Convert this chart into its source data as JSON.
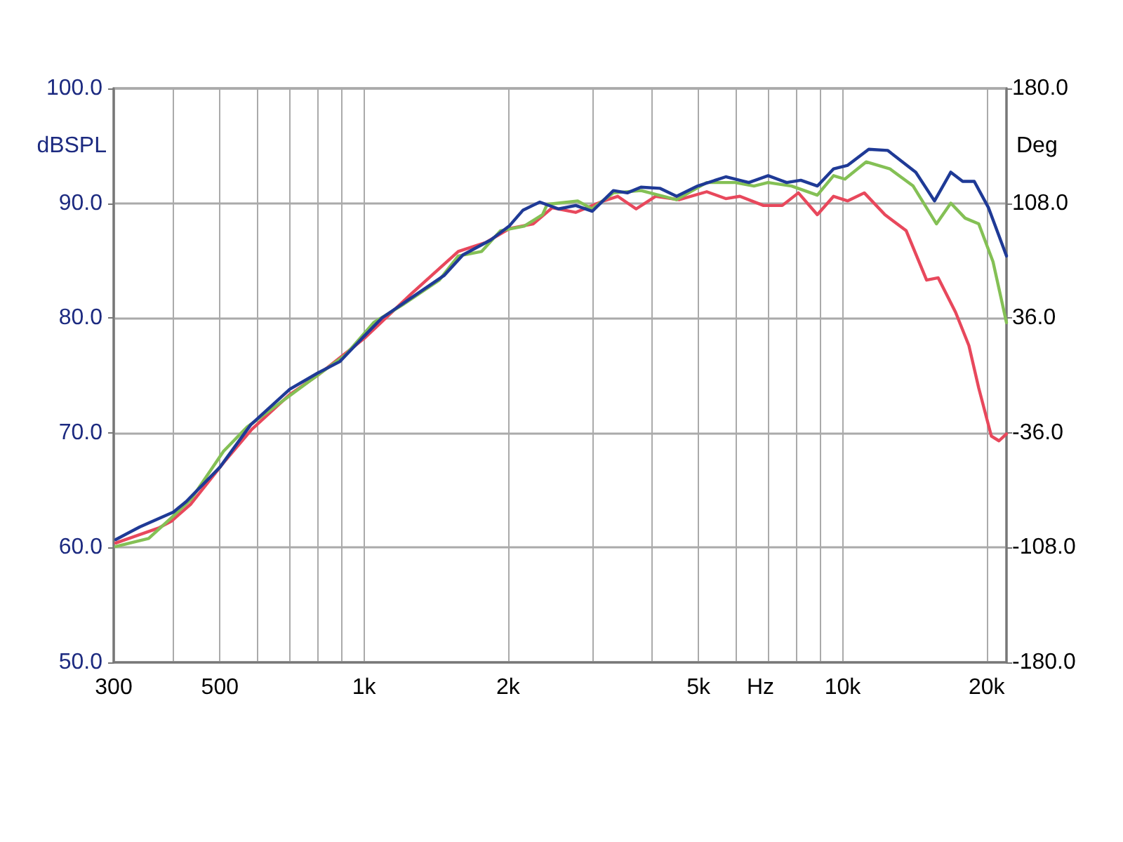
{
  "chart_data": {
    "type": "line",
    "xlabel": "Hz",
    "ylabel": "dBSPL",
    "y2label": "Deg",
    "log": "x",
    "grid": true,
    "marker": "none",
    "line_style": "solid",
    "xlim": [
      300,
      22000
    ],
    "ylim": [
      50,
      100
    ],
    "y2lim": [
      -180,
      180
    ],
    "xticks": [
      300,
      {
        "value": 400,
        "label": null
      },
      500,
      {
        "value": 600,
        "label": null
      },
      {
        "value": 700,
        "label": null
      },
      {
        "value": 800,
        "label": null
      },
      {
        "value": 900,
        "label": null
      },
      {
        "value": 1000,
        "label": "1k"
      },
      {
        "value": 2000,
        "label": "2k"
      },
      {
        "value": 3000,
        "label": null
      },
      {
        "value": 4000,
        "label": null
      },
      {
        "value": 5000,
        "label": "5k"
      },
      {
        "value": 6000,
        "label": null
      },
      {
        "value": 7000,
        "label": null
      },
      {
        "value": 8000,
        "label": null
      },
      {
        "value": 9000,
        "label": null
      },
      {
        "value": 10000,
        "label": "10k"
      },
      {
        "value": 20000,
        "label": "20k"
      }
    ],
    "yticks": [
      {
        "value": 50,
        "label": "50.0"
      },
      {
        "value": 60,
        "label": "60.0"
      },
      {
        "value": 70,
        "label": "70.0"
      },
      {
        "value": 80,
        "label": "80.0"
      },
      {
        "value": 90,
        "label": "90.0"
      },
      {
        "value": 100,
        "label": "100.0"
      }
    ],
    "y2ticks": [
      {
        "value": -180,
        "label": "-180.0"
      },
      {
        "value": -108,
        "label": "-108.0"
      },
      {
        "value": -36,
        "label": "-36.0"
      },
      {
        "value": 36,
        "label": "36.0"
      },
      {
        "value": 108,
        "label": "108.0"
      },
      {
        "value": 180,
        "label": "180.0"
      }
    ],
    "series": [
      {
        "color": "#e8485c",
        "x": [
          303,
          372,
          396,
          435,
          509,
          583,
          698,
          800,
          1000,
          1255,
          1574,
          1802,
          2016,
          2257,
          2473,
          2768,
          3167,
          3389,
          3704,
          4066,
          4552,
          5202,
          5700,
          6100,
          6835,
          7480,
          8085,
          8855,
          9575,
          10250,
          11100,
          12260,
          13580,
          14980,
          15840,
          17220,
          18360,
          19250,
          20460,
          21220,
          22000
        ],
        "values": [
          60.4,
          61.7,
          62.3,
          63.8,
          67.4,
          70.3,
          73.3,
          75.0,
          78.2,
          82.1,
          85.8,
          86.6,
          87.8,
          88.2,
          89.6,
          89.2,
          90.2,
          90.6,
          89.5,
          90.6,
          90.3,
          91.0,
          90.4,
          90.6,
          89.8,
          89.8,
          90.9,
          89.0,
          90.6,
          90.2,
          90.9,
          89.0,
          87.6,
          83.3,
          83.5,
          80.5,
          77.6,
          73.9,
          69.7,
          69.3,
          69.9
        ]
      },
      {
        "color": "#84c055",
        "x": [
          303,
          355,
          396,
          435,
          509,
          570,
          624,
          764,
          916,
          1048,
          1200,
          1437,
          1574,
          1762,
          1928,
          2160,
          2361,
          2414,
          2796,
          2995,
          3318,
          3794,
          4498,
          5202,
          5963,
          6528,
          6985,
          7823,
          8855,
          9575,
          10110,
          11200,
          12550,
          14040,
          15710,
          16830,
          18030,
          19250,
          20620,
          22000
        ],
        "values": [
          60.1,
          60.8,
          62.6,
          64.2,
          68.4,
          70.5,
          71.7,
          74.4,
          76.8,
          79.6,
          81.1,
          83.3,
          85.4,
          85.8,
          87.6,
          88.0,
          89.0,
          89.9,
          90.2,
          89.5,
          90.9,
          91.1,
          90.3,
          91.8,
          91.8,
          91.5,
          91.8,
          91.5,
          90.7,
          92.4,
          92.1,
          93.6,
          93.0,
          91.5,
          88.2,
          90.0,
          88.7,
          88.2,
          84.9,
          79.6
        ]
      },
      {
        "color": "#1f3a96",
        "x": [
          303,
          340,
          400,
          425,
          500,
          580,
          700,
          800,
          890,
          1000,
          1090,
          1250,
          1470,
          1610,
          1840,
          2010,
          2150,
          2330,
          2550,
          2770,
          3000,
          3320,
          3550,
          3790,
          4150,
          4500,
          4980,
          5700,
          6370,
          6990,
          7640,
          8180,
          8860,
          9580,
          10250,
          11340,
          12420,
          14220,
          15560,
          16830,
          17820,
          18840,
          20180,
          22000
        ],
        "values": [
          60.7,
          61.8,
          63.1,
          64.0,
          67.0,
          70.7,
          73.8,
          75.2,
          76.2,
          78.4,
          80.0,
          81.7,
          83.7,
          85.5,
          86.8,
          88.0,
          89.4,
          90.1,
          89.5,
          89.8,
          89.3,
          91.1,
          90.9,
          91.4,
          91.3,
          90.6,
          91.5,
          92.3,
          91.8,
          92.4,
          91.8,
          92.0,
          91.5,
          93.0,
          93.3,
          94.7,
          94.6,
          92.7,
          90.2,
          92.7,
          91.9,
          91.9,
          89.6,
          85.4
        ]
      }
    ]
  }
}
